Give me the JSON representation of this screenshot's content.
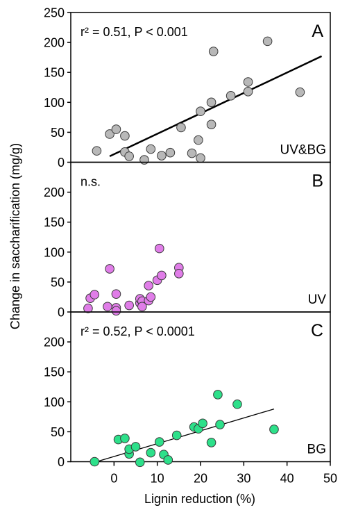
{
  "chart_data": {
    "type": "scatter",
    "ylabel": "Change in saccharification (mg/g)",
    "xlabel": "Lignin reduction (%)",
    "xlim": [
      -10,
      50
    ],
    "x_ticks": [
      "0",
      "10",
      "20",
      "30",
      "40",
      "50"
    ],
    "panels": [
      {
        "letter": "A",
        "group": "UV&BG",
        "stats": "r² = 0.51, P < 0.001",
        "ylim": [
          0,
          250
        ],
        "y_ticks": [
          "0",
          "50",
          "100",
          "150",
          "200",
          "250"
        ],
        "marker_color": "#b8b8b8",
        "trend": {
          "x": [
            -1,
            48
          ],
          "y": [
            10,
            177
          ],
          "stroke": 2.5
        },
        "points": [
          [
            -4,
            19
          ],
          [
            -1,
            47
          ],
          [
            0.5,
            55
          ],
          [
            2.5,
            44
          ],
          [
            2.5,
            17
          ],
          [
            3.5,
            10
          ],
          [
            7,
            4
          ],
          [
            8.5,
            22
          ],
          [
            11,
            11
          ],
          [
            13,
            16
          ],
          [
            15.5,
            58
          ],
          [
            18,
            15
          ],
          [
            19.5,
            37
          ],
          [
            20,
            85
          ],
          [
            20,
            7
          ],
          [
            22.5,
            100
          ],
          [
            22.5,
            63
          ],
          [
            23,
            185
          ],
          [
            27,
            111
          ],
          [
            31,
            134
          ],
          [
            31,
            118
          ],
          [
            35.5,
            202
          ],
          [
            43,
            117
          ]
        ]
      },
      {
        "letter": "B",
        "group": "UV",
        "stats": "n.s.",
        "ylim": [
          0,
          250
        ],
        "y_ticks": [
          "0",
          "50",
          "100",
          "150",
          "200"
        ],
        "marker_color": "#e07de8",
        "trend": null,
        "points": [
          [
            -6,
            6
          ],
          [
            -5.5,
            23
          ],
          [
            -4.5,
            29
          ],
          [
            -1.5,
            9
          ],
          [
            -1,
            72
          ],
          [
            0.5,
            30
          ],
          [
            0.5,
            7
          ],
          [
            0.5,
            2
          ],
          [
            3.5,
            11
          ],
          [
            6,
            15
          ],
          [
            6,
            22
          ],
          [
            6.5,
            18
          ],
          [
            6.5,
            9
          ],
          [
            8,
            19
          ],
          [
            8,
            44
          ],
          [
            8.5,
            25
          ],
          [
            10,
            53
          ],
          [
            10.5,
            106
          ],
          [
            11,
            61
          ],
          [
            15,
            74
          ],
          [
            15,
            64
          ]
        ]
      },
      {
        "letter": "C",
        "group": "BG",
        "stats": "r² = 0.52, P < 0.0001",
        "ylim": [
          0,
          250
        ],
        "y_ticks": [
          "0",
          "50",
          "100",
          "150",
          "200"
        ],
        "marker_color": "#2de08a",
        "trend": {
          "x": [
            -5,
            37
          ],
          "y": [
            -2,
            88
          ],
          "stroke": 1.3
        },
        "points": [
          [
            -4.5,
            0
          ],
          [
            1,
            37
          ],
          [
            2.5,
            39
          ],
          [
            3.5,
            13
          ],
          [
            3.5,
            21
          ],
          [
            5,
            25
          ],
          [
            6,
            -1
          ],
          [
            8.5,
            15
          ],
          [
            10.5,
            33
          ],
          [
            11.5,
            12
          ],
          [
            12.5,
            3
          ],
          [
            14.5,
            44
          ],
          [
            18.5,
            58
          ],
          [
            19.5,
            55
          ],
          [
            20.5,
            64
          ],
          [
            22.5,
            32
          ],
          [
            24,
            112
          ],
          [
            24.5,
            62
          ],
          [
            28.5,
            96
          ],
          [
            37,
            54
          ]
        ]
      }
    ]
  }
}
